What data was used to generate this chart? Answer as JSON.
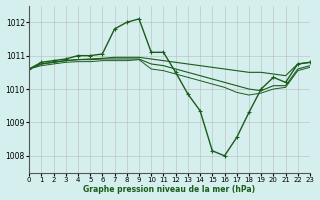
{
  "title": "Graphe pression niveau de la mer (hPa)",
  "bg_color": "#d5eeee",
  "grid_color": "#bbbbbb",
  "line_color": "#1a5c1a",
  "ylim": [
    1007.5,
    1012.5
  ],
  "xlim": [
    0,
    23
  ],
  "yticks": [
    1008,
    1009,
    1010,
    1011,
    1012
  ],
  "xticks": [
    0,
    1,
    2,
    3,
    4,
    5,
    6,
    7,
    8,
    9,
    10,
    11,
    12,
    13,
    14,
    15,
    16,
    17,
    18,
    19,
    20,
    21,
    22,
    23
  ],
  "series": [
    {
      "x": [
        0,
        1,
        2,
        3,
        4,
        5,
        6,
        7,
        8,
        9,
        10,
        11,
        12,
        13,
        14,
        15,
        16,
        17,
        18,
        19,
        20,
        21,
        22,
        23
      ],
      "y": [
        1010.6,
        1010.8,
        1010.85,
        1010.9,
        1011.0,
        1011.0,
        1011.05,
        1011.8,
        1012.0,
        1012.1,
        1011.1,
        1011.1,
        1010.5,
        1009.85,
        1009.35,
        1008.15,
        1008.0,
        1008.55,
        1009.3,
        1010.0,
        1010.35,
        1010.2,
        1010.75,
        1010.8
      ],
      "marker": true,
      "lw": 1.0
    },
    {
      "x": [
        0,
        1,
        2,
        3,
        4,
        5,
        6,
        7,
        8,
        9,
        10,
        11,
        12,
        13,
        14,
        15,
        16,
        17,
        18,
        19,
        20,
        21,
        22,
        23
      ],
      "y": [
        1010.6,
        1010.75,
        1010.8,
        1010.85,
        1010.88,
        1010.9,
        1010.92,
        1010.95,
        1010.95,
        1010.95,
        1010.9,
        1010.85,
        1010.8,
        1010.75,
        1010.7,
        1010.65,
        1010.6,
        1010.55,
        1010.5,
        1010.5,
        1010.45,
        1010.4,
        1010.75,
        1010.8
      ],
      "marker": false,
      "lw": 0.8
    },
    {
      "x": [
        0,
        1,
        2,
        3,
        4,
        5,
        6,
        7,
        8,
        9,
        10,
        11,
        12,
        13,
        14,
        15,
        16,
        17,
        18,
        19,
        20,
        21,
        22,
        23
      ],
      "y": [
        1010.6,
        1010.75,
        1010.8,
        1010.85,
        1010.88,
        1010.88,
        1010.9,
        1010.9,
        1010.9,
        1010.9,
        1010.75,
        1010.7,
        1010.6,
        1010.5,
        1010.4,
        1010.3,
        1010.2,
        1010.1,
        1010.0,
        1009.95,
        1010.1,
        1010.1,
        1010.6,
        1010.7
      ],
      "marker": false,
      "lw": 0.8
    },
    {
      "x": [
        0,
        1,
        2,
        3,
        4,
        5,
        6,
        7,
        8,
        9,
        10,
        11,
        12,
        13,
        14,
        15,
        16,
        17,
        18,
        19,
        20,
        21,
        22,
        23
      ],
      "y": [
        1010.6,
        1010.7,
        1010.75,
        1010.8,
        1010.82,
        1010.82,
        1010.85,
        1010.85,
        1010.85,
        1010.88,
        1010.6,
        1010.55,
        1010.45,
        1010.35,
        1010.25,
        1010.15,
        1010.05,
        1009.9,
        1009.82,
        1009.88,
        1010.0,
        1010.05,
        1010.55,
        1010.65
      ],
      "marker": false,
      "lw": 0.7
    }
  ]
}
